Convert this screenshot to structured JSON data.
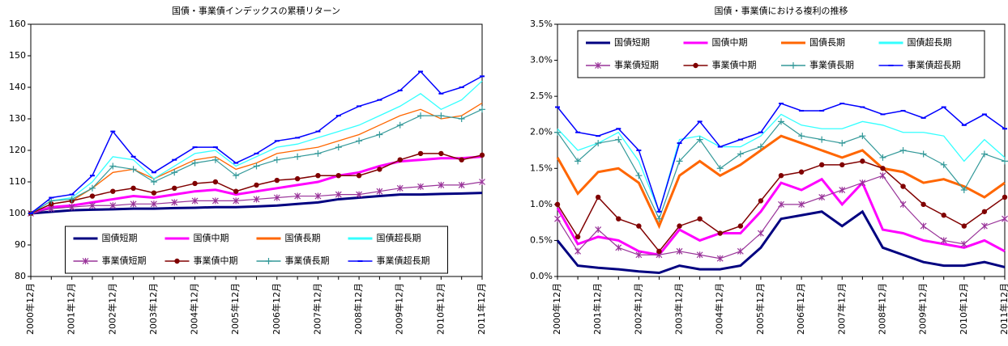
{
  "chart_data": [
    {
      "type": "line",
      "title": "国債・事業債インデックスの累積リターン",
      "categories": [
        "2000年12月",
        null,
        "2001年12月",
        null,
        "2002年12月",
        null,
        "2003年12月",
        null,
        "2004年12月",
        null,
        "2005年12月",
        null,
        "2006年12月",
        null,
        "2007年12月",
        null,
        "2008年12月",
        null,
        "2009年12月",
        null,
        "2010年12月",
        null,
        "2011年12月"
      ],
      "ylim": [
        80,
        160
      ],
      "yticks": [
        80,
        90,
        100,
        110,
        120,
        130,
        140,
        150,
        160
      ],
      "legend": "lower center",
      "series": [
        {
          "name": "国債短期",
          "color": "#000080",
          "values": [
            100,
            100.5,
            101,
            101.2,
            101.3,
            101.5,
            101.5,
            101.7,
            101.8,
            102,
            102,
            102.2,
            102.5,
            103,
            103.5,
            104.5,
            105,
            105.5,
            106,
            106,
            106.2,
            106.3,
            106.5
          ]
        },
        {
          "name": "国債中期",
          "color": "#ff00ff",
          "values": [
            100,
            102,
            102.5,
            103.5,
            104.5,
            105.5,
            105,
            106,
            107,
            107.5,
            106,
            107,
            108,
            109,
            110,
            112,
            113,
            115,
            116.5,
            117,
            117.5,
            117.5,
            118
          ]
        },
        {
          "name": "国債長期",
          "color": "#ff6600",
          "values": [
            100,
            103,
            104,
            108,
            113,
            114,
            111,
            114,
            117,
            118,
            114,
            116,
            119,
            120,
            121,
            123,
            125,
            128,
            131,
            133,
            130,
            131,
            135
          ]
        },
        {
          "name": "国債超長期",
          "color": "#33ffff",
          "values": [
            100,
            104,
            105,
            110,
            118,
            117,
            111,
            115,
            119,
            120,
            115,
            118,
            121,
            122,
            124,
            126,
            128,
            131,
            134,
            138,
            133,
            136,
            142
          ]
        },
        {
          "name": "事業債短期",
          "color": "#993399",
          "marker": "star",
          "values": [
            100,
            101.5,
            102,
            102.5,
            102.5,
            103,
            103,
            103.5,
            104,
            104,
            104,
            104.5,
            105,
            105.5,
            105.5,
            106,
            106,
            107,
            108,
            108.5,
            109,
            109,
            110
          ]
        },
        {
          "name": "事業債中期",
          "color": "#800000",
          "marker": "circle",
          "values": [
            100,
            103,
            104,
            105.5,
            107,
            108,
            106.5,
            108,
            109.5,
            110,
            107,
            109,
            110.5,
            111,
            112,
            112,
            112,
            114,
            117,
            119,
            119,
            117,
            118.5
          ]
        },
        {
          "name": "事業債長期",
          "color": "#339999",
          "marker": "plus",
          "values": [
            100,
            104,
            104.5,
            108,
            115,
            114,
            110,
            113,
            116,
            117,
            112,
            115,
            117,
            118,
            119,
            121,
            123,
            125,
            128,
            131,
            131,
            130,
            133
          ]
        },
        {
          "name": "事業債超長期",
          "color": "#0000ff",
          "marker": "dash",
          "values": [
            100,
            105,
            106,
            112,
            126,
            118,
            113,
            117,
            121,
            121,
            116,
            119,
            123,
            124,
            126,
            131,
            134,
            136,
            139,
            145,
            138,
            140,
            143.5
          ]
        }
      ]
    },
    {
      "type": "line",
      "title": "国債・事業債における複利の推移",
      "categories": [
        "2000年12月",
        null,
        "2001年12月",
        null,
        "2002年12月",
        null,
        "2003年12月",
        null,
        "2004年12月",
        null,
        "2005年12月",
        null,
        "2006年12月",
        null,
        "2007年12月",
        null,
        "2008年12月",
        null,
        "2009年12月",
        null,
        "2010年12月",
        null,
        "2011年12月"
      ],
      "ylim": [
        0,
        3.5
      ],
      "yticks": [
        {
          "value": 0,
          "label": "0.0%"
        },
        {
          "value": 0.5,
          "label": "0.5%"
        },
        {
          "value": 1,
          "label": "1.0%"
        },
        {
          "value": 1.5,
          "label": "1.5%"
        },
        {
          "value": 2,
          "label": "2.0%"
        },
        {
          "value": 2.5,
          "label": "2.5%"
        },
        {
          "value": 3,
          "label": "3.0%"
        },
        {
          "value": 3.5,
          "label": "3.5%"
        }
      ],
      "legend": "upper center",
      "series": [
        {
          "name": "国債短期",
          "color": "#000080",
          "values": [
            0.5,
            0.15,
            0.12,
            0.1,
            0.07,
            0.05,
            0.15,
            0.1,
            0.1,
            0.15,
            0.4,
            0.8,
            0.85,
            0.9,
            0.7,
            0.9,
            0.4,
            0.3,
            0.2,
            0.15,
            0.15,
            0.2,
            0.13
          ]
        },
        {
          "name": "国債中期",
          "color": "#ff00ff",
          "values": [
            0.95,
            0.45,
            0.55,
            0.5,
            0.35,
            0.3,
            0.65,
            0.5,
            0.6,
            0.6,
            0.9,
            1.3,
            1.2,
            1.35,
            1.0,
            1.3,
            0.65,
            0.6,
            0.5,
            0.45,
            0.4,
            0.5,
            0.35
          ]
        },
        {
          "name": "国債長期",
          "color": "#ff6600",
          "values": [
            1.65,
            1.15,
            1.45,
            1.5,
            1.3,
            0.7,
            1.4,
            1.6,
            1.4,
            1.55,
            1.75,
            1.95,
            1.85,
            1.75,
            1.65,
            1.75,
            1.5,
            1.45,
            1.3,
            1.35,
            1.25,
            1.1,
            1.3
          ]
        },
        {
          "name": "国債超長期",
          "color": "#33ffff",
          "values": [
            2.05,
            1.75,
            1.85,
            2.0,
            1.6,
            0.9,
            1.9,
            1.95,
            1.8,
            1.8,
            1.95,
            2.25,
            2.1,
            2.05,
            2.05,
            2.15,
            2.1,
            2.0,
            2.0,
            1.95,
            1.6,
            1.9,
            1.65
          ]
        },
        {
          "name": "事業債短期",
          "color": "#993399",
          "marker": "star",
          "values": [
            0.8,
            0.35,
            0.65,
            0.4,
            0.3,
            0.3,
            0.35,
            0.3,
            0.25,
            0.35,
            0.6,
            1.0,
            1.0,
            1.1,
            1.2,
            1.3,
            1.4,
            1.0,
            0.7,
            0.5,
            0.45,
            0.7,
            0.8
          ]
        },
        {
          "name": "事業債中期",
          "color": "#800000",
          "marker": "circle",
          "values": [
            1.0,
            0.55,
            1.1,
            0.8,
            0.7,
            0.35,
            0.7,
            0.8,
            0.6,
            0.7,
            1.05,
            1.4,
            1.45,
            1.55,
            1.55,
            1.6,
            1.5,
            1.25,
            1.0,
            0.85,
            0.7,
            0.9,
            1.1
          ]
        },
        {
          "name": "事業債長期",
          "color": "#339999",
          "marker": "plus",
          "values": [
            2.0,
            1.6,
            1.85,
            1.9,
            1.4,
            0.8,
            1.6,
            1.9,
            1.5,
            1.7,
            1.8,
            2.15,
            1.95,
            1.9,
            1.85,
            1.95,
            1.65,
            1.75,
            1.7,
            1.55,
            1.2,
            1.7,
            1.6
          ]
        },
        {
          "name": "事業債超長期",
          "color": "#0000ff",
          "marker": "dash",
          "values": [
            2.35,
            2.0,
            1.95,
            2.05,
            1.75,
            0.9,
            1.85,
            2.15,
            1.8,
            1.9,
            2.0,
            2.4,
            2.3,
            2.3,
            2.4,
            2.35,
            2.25,
            2.3,
            2.2,
            2.35,
            2.1,
            2.25,
            2.05
          ]
        }
      ]
    }
  ]
}
